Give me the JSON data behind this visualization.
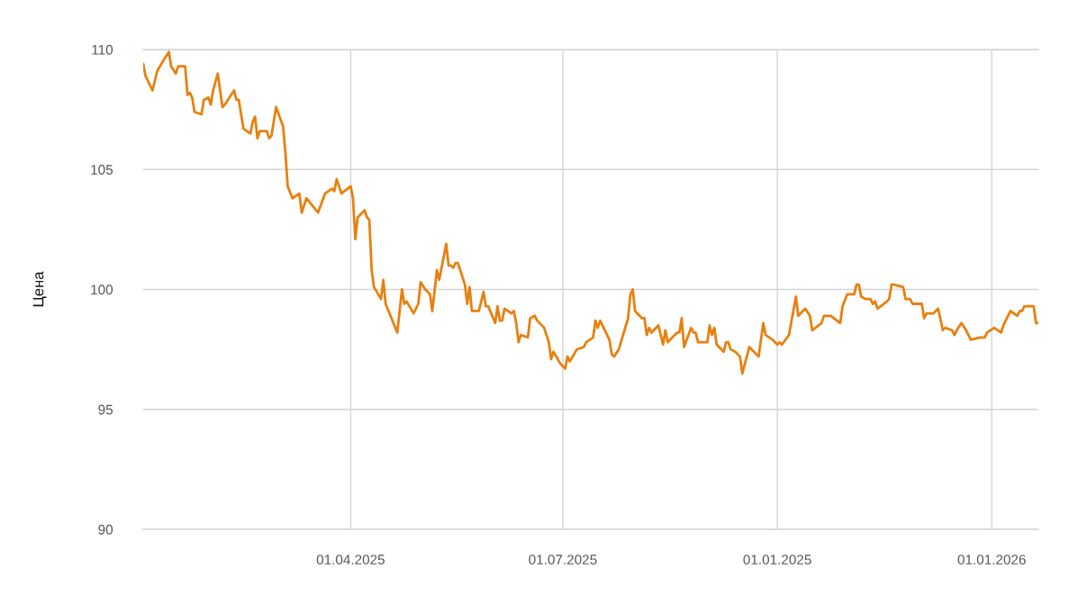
{
  "chart_data": {
    "type": "line",
    "ylabel": "Цена",
    "x": [
      "2025-01-02",
      "2025-01-03",
      "2025-01-06",
      "2025-01-08",
      "2025-01-11",
      "2025-01-13",
      "2025-01-14",
      "2025-01-16",
      "2025-01-17",
      "2025-01-20",
      "2025-01-21",
      "2025-01-22",
      "2025-01-23",
      "2025-01-24",
      "2025-01-27",
      "2025-01-28",
      "2025-01-30",
      "2025-01-31",
      "2025-02-01",
      "2025-02-03",
      "2025-02-05",
      "2025-02-06",
      "2025-02-08",
      "2025-02-10",
      "2025-02-11",
      "2025-02-12",
      "2025-02-14",
      "2025-02-17",
      "2025-02-18",
      "2025-02-19",
      "2025-02-20",
      "2025-02-21",
      "2025-02-24",
      "2025-02-25",
      "2025-02-26",
      "2025-02-28",
      "2025-03-03",
      "2025-03-04",
      "2025-03-05",
      "2025-03-07",
      "2025-03-10",
      "2025-03-11",
      "2025-03-13",
      "2025-03-18",
      "2025-03-21",
      "2025-03-24",
      "2025-03-25",
      "2025-03-26",
      "2025-03-28",
      "2025-04-01",
      "2025-04-02",
      "2025-04-03",
      "2025-04-04",
      "2025-04-07",
      "2025-04-08",
      "2025-04-09",
      "2025-04-10",
      "2025-04-11",
      "2025-04-14",
      "2025-04-15",
      "2025-04-16",
      "2025-04-21",
      "2025-04-23",
      "2025-04-24",
      "2025-04-25",
      "2025-04-28",
      "2025-04-30",
      "2025-05-01",
      "2025-05-03",
      "2025-05-05",
      "2025-05-06",
      "2025-05-08",
      "2025-05-09",
      "2025-05-12",
      "2025-05-13",
      "2025-05-14",
      "2025-05-15",
      "2025-05-16",
      "2025-05-17",
      "2025-05-20",
      "2025-05-21",
      "2025-05-22",
      "2025-05-23",
      "2025-05-26",
      "2025-05-28",
      "2025-05-29",
      "2025-05-30",
      "2025-06-02",
      "2025-06-03",
      "2025-06-04",
      "2025-06-05",
      "2025-06-06",
      "2025-06-09",
      "2025-06-10",
      "2025-06-11",
      "2025-06-12",
      "2025-06-13",
      "2025-06-16",
      "2025-06-17",
      "2025-06-19",
      "2025-06-20",
      "2025-06-23",
      "2025-06-25",
      "2025-06-26",
      "2025-06-27",
      "2025-06-30",
      "2025-07-02",
      "2025-07-03",
      "2025-07-04",
      "2025-07-07",
      "2025-07-10",
      "2025-07-11",
      "2025-07-14",
      "2025-07-15",
      "2025-07-16",
      "2025-07-17",
      "2025-07-21",
      "2025-07-22",
      "2025-07-23",
      "2025-07-25",
      "2025-07-29",
      "2025-07-30",
      "2025-07-31",
      "2025-08-01",
      "2025-08-04",
      "2025-08-05",
      "2025-08-06",
      "2025-08-07",
      "2025-08-08",
      "2025-08-11",
      "2025-08-13",
      "2025-08-14",
      "2025-08-15",
      "2025-08-19",
      "2025-08-20",
      "2025-08-21",
      "2025-08-22",
      "2025-08-25",
      "2025-08-26",
      "2025-08-27",
      "2025-08-28",
      "2025-09-01",
      "2025-09-02",
      "2025-09-03",
      "2025-09-04",
      "2025-09-05",
      "2025-09-08",
      "2025-09-09",
      "2025-09-10",
      "2025-09-11",
      "2025-09-13",
      "2025-09-15",
      "2025-09-16",
      "2025-09-19",
      "2025-09-23",
      "2025-09-25",
      "2025-09-26",
      "2025-09-29",
      "2025-10-01",
      "2025-10-02",
      "2025-10-03",
      "2025-10-06",
      "2025-10-09",
      "2025-10-10",
      "2025-10-13",
      "2025-10-15",
      "2025-10-16",
      "2025-10-20",
      "2025-10-21",
      "2025-10-24",
      "2025-10-28",
      "2025-10-29",
      "2025-10-31",
      "2025-11-03",
      "2025-11-04",
      "2025-11-05",
      "2025-11-06",
      "2025-11-08",
      "2025-11-10",
      "2025-11-11",
      "2025-11-12",
      "2025-11-13",
      "2025-11-17",
      "2025-11-18",
      "2025-11-19",
      "2025-11-20",
      "2025-11-24",
      "2025-11-25",
      "2025-11-27",
      "2025-11-28",
      "2025-12-02",
      "2025-12-03",
      "2025-12-04",
      "2025-12-07",
      "2025-12-09",
      "2025-12-11",
      "2025-12-12",
      "2025-12-15",
      "2025-12-16",
      "2025-12-17",
      "2025-12-19",
      "2025-12-21",
      "2025-12-23",
      "2025-12-27",
      "2025-12-29",
      "2025-12-30",
      "2026-01-02",
      "2026-01-05",
      "2026-01-06",
      "2026-01-07",
      "2026-01-09",
      "2026-01-12",
      "2026-01-13",
      "2026-01-14",
      "2026-01-15",
      "2026-01-19",
      "2026-01-20",
      "2026-01-21"
    ],
    "series": [
      {
        "color": "#e8800f",
        "values": [
          109.4,
          108.9,
          108.3,
          109.1,
          109.6,
          109.9,
          109.3,
          109.0,
          109.3,
          109.3,
          108.1,
          108.2,
          108.0,
          107.4,
          107.3,
          107.9,
          108.0,
          107.7,
          108.3,
          109.0,
          107.6,
          107.7,
          108.0,
          108.3,
          107.9,
          107.9,
          106.7,
          106.5,
          107.0,
          107.2,
          106.3,
          106.6,
          106.6,
          106.3,
          106.4,
          107.6,
          106.8,
          105.7,
          104.3,
          103.8,
          104.0,
          103.2,
          103.8,
          103.2,
          104.0,
          104.2,
          104.1,
          104.6,
          104.0,
          104.3,
          103.8,
          102.1,
          103.0,
          103.3,
          103.0,
          102.9,
          100.8,
          100.1,
          99.6,
          100.4,
          99.4,
          98.2,
          100.0,
          99.4,
          99.5,
          99.0,
          99.4,
          100.3,
          100.0,
          99.8,
          99.1,
          100.8,
          100.4,
          101.9,
          101.0,
          101.0,
          100.9,
          101.1,
          101.1,
          100.2,
          99.4,
          100.1,
          99.1,
          99.1,
          99.9,
          99.3,
          99.3,
          98.6,
          99.3,
          98.7,
          98.7,
          99.2,
          99.0,
          99.1,
          98.6,
          97.8,
          98.1,
          98.0,
          98.8,
          98.9,
          98.7,
          98.4,
          97.8,
          97.1,
          97.4,
          96.9,
          96.7,
          97.2,
          97.0,
          97.5,
          97.6,
          97.8,
          98.0,
          98.7,
          98.4,
          98.7,
          97.9,
          97.3,
          97.2,
          97.5,
          98.8,
          99.8,
          100.0,
          99.1,
          98.8,
          98.8,
          98.1,
          98.4,
          98.2,
          98.5,
          97.7,
          98.3,
          97.8,
          98.2,
          98.2,
          98.8,
          97.6,
          98.4,
          98.2,
          98.2,
          97.8,
          97.8,
          98.5,
          98.1,
          98.4,
          97.7,
          97.4,
          97.8,
          97.8,
          97.5,
          97.4,
          97.2,
          96.5,
          97.6,
          97.2,
          98.6,
          98.1,
          97.9,
          97.7,
          97.8,
          97.7,
          98.1,
          99.7,
          98.9,
          99.2,
          98.9,
          98.3,
          98.6,
          98.9,
          98.9,
          98.6,
          99.3,
          99.8,
          99.8,
          100.2,
          100.2,
          99.7,
          99.6,
          99.6,
          99.4,
          99.5,
          99.2,
          99.5,
          99.6,
          100.2,
          100.2,
          100.1,
          99.6,
          99.6,
          99.4,
          99.4,
          98.8,
          99.0,
          99.0,
          99.2,
          98.3,
          98.4,
          98.3,
          98.1,
          98.3,
          98.6,
          98.3,
          97.9,
          98.0,
          98.0,
          98.2,
          98.4,
          98.2,
          98.5,
          98.7,
          99.1,
          98.9,
          99.1,
          99.1,
          99.3,
          99.3,
          98.6,
          98.6
        ]
      }
    ],
    "xlim": [
      "2025-01-02",
      "2026-01-21"
    ],
    "xticks": [
      {
        "value": "2025-04-01",
        "label": "01.04.2025"
      },
      {
        "value": "2025-07-01",
        "label": "01.07.2025"
      },
      {
        "value": "2025-10-01",
        "label": "01.01.2025"
      },
      {
        "value": "2026-01-01",
        "label": "01.01.2026"
      }
    ],
    "ylim": [
      90,
      110
    ],
    "yticks": [
      90,
      95,
      100,
      105,
      110
    ],
    "grid": true
  }
}
